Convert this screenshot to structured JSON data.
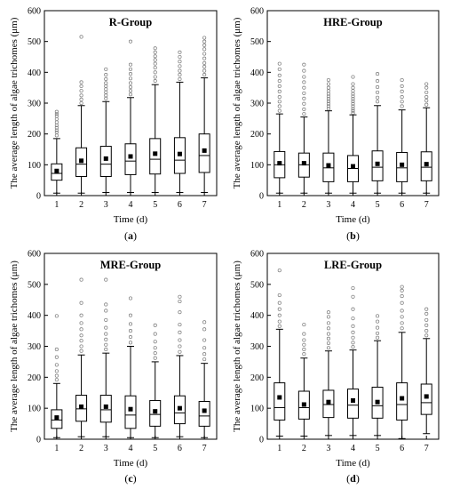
{
  "chart_data": [
    {
      "type": "box",
      "panel_label": "a",
      "title": "R-Group",
      "xlabel": "Time (d)",
      "ylabel": "The average length of algae trichomes (μm)",
      "ylim": [
        0,
        600
      ],
      "yticks": [
        0,
        100,
        200,
        300,
        400,
        500,
        600
      ],
      "categories": [
        "1",
        "2",
        "3",
        "4",
        "5",
        "6",
        "7"
      ],
      "boxes": [
        {
          "x": "1",
          "whisker_low": 8,
          "q1": 50,
          "median": 72,
          "q3": 103,
          "whisker_high": 185,
          "mean": 80,
          "outliers": [
            195,
            205,
            212,
            220,
            228,
            238,
            248,
            258,
            265,
            272
          ]
        },
        {
          "x": "2",
          "whisker_low": 8,
          "q1": 62,
          "median": 102,
          "q3": 155,
          "whisker_high": 292,
          "mean": 113,
          "outliers": [
            300,
            312,
            325,
            340,
            355,
            368,
            515
          ]
        },
        {
          "x": "3",
          "whisker_low": 10,
          "q1": 62,
          "median": 102,
          "q3": 160,
          "whisker_high": 305,
          "mean": 120,
          "outliers": [
            315,
            325,
            335,
            345,
            355,
            365,
            378,
            392,
            410
          ]
        },
        {
          "x": "4",
          "whisker_low": 10,
          "q1": 68,
          "median": 112,
          "q3": 168,
          "whisker_high": 318,
          "mean": 127,
          "outliers": [
            328,
            340,
            352,
            365,
            380,
            395,
            410,
            425,
            500
          ]
        },
        {
          "x": "5",
          "whisker_low": 10,
          "q1": 70,
          "median": 118,
          "q3": 185,
          "whisker_high": 360,
          "mean": 136,
          "outliers": [
            372,
            385,
            400,
            415,
            428,
            440,
            452,
            465,
            478
          ]
        },
        {
          "x": "6",
          "whisker_low": 10,
          "q1": 72,
          "median": 115,
          "q3": 188,
          "whisker_high": 368,
          "mean": 135,
          "outliers": [
            378,
            392,
            405,
            420,
            435,
            450,
            465
          ]
        },
        {
          "x": "7",
          "whisker_low": 10,
          "q1": 75,
          "median": 130,
          "q3": 200,
          "whisker_high": 382,
          "mean": 146,
          "outliers": [
            392,
            405,
            418,
            430,
            445,
            460,
            475,
            488,
            500,
            512
          ]
        }
      ]
    },
    {
      "type": "box",
      "panel_label": "b",
      "title": "HRE-Group",
      "xlabel": "Time (d)",
      "ylabel": "The average length of algae trichomes (μm)",
      "ylim": [
        0,
        600
      ],
      "yticks": [
        0,
        100,
        200,
        300,
        400,
        500,
        600
      ],
      "categories": [
        "1",
        "2",
        "3",
        "4",
        "5",
        "6",
        "7"
      ],
      "boxes": [
        {
          "x": "1",
          "whisker_low": 8,
          "q1": 58,
          "median": 100,
          "q3": 143,
          "whisker_high": 265,
          "mean": 105,
          "outliers": [
            275,
            290,
            305,
            320,
            338,
            355,
            372,
            390,
            410,
            428
          ]
        },
        {
          "x": "2",
          "whisker_low": 8,
          "q1": 60,
          "median": 100,
          "q3": 138,
          "whisker_high": 255,
          "mean": 105,
          "outliers": [
            265,
            280,
            298,
            315,
            332,
            350,
            368,
            385,
            405,
            425
          ]
        },
        {
          "x": "3",
          "whisker_low": 8,
          "q1": 45,
          "median": 90,
          "q3": 138,
          "whisker_high": 275,
          "mean": 98,
          "outliers": [
            282,
            290,
            298,
            306,
            314,
            322,
            330,
            340,
            350,
            362,
            375
          ]
        },
        {
          "x": "4",
          "whisker_low": 8,
          "q1": 45,
          "median": 88,
          "q3": 130,
          "whisker_high": 262,
          "mean": 95,
          "outliers": [
            268,
            275,
            282,
            290,
            298,
            306,
            314,
            322,
            330,
            340,
            350,
            362,
            385
          ]
        },
        {
          "x": "5",
          "whisker_low": 8,
          "q1": 48,
          "median": 92,
          "q3": 145,
          "whisker_high": 292,
          "mean": 103,
          "outliers": [
            305,
            318,
            335,
            352,
            372,
            395
          ]
        },
        {
          "x": "6",
          "whisker_low": 8,
          "q1": 45,
          "median": 90,
          "q3": 140,
          "whisker_high": 278,
          "mean": 100,
          "outliers": [
            290,
            305,
            320,
            338,
            355,
            375
          ]
        },
        {
          "x": "7",
          "whisker_low": 8,
          "q1": 48,
          "median": 92,
          "q3": 142,
          "whisker_high": 285,
          "mean": 102,
          "outliers": [
            295,
            308,
            320,
            335,
            350,
            362
          ]
        }
      ]
    },
    {
      "type": "box",
      "panel_label": "c",
      "title": "MRE-Group",
      "xlabel": "Time (d)",
      "ylabel": "The average length of algae trichomes (μm)",
      "ylim": [
        0,
        600
      ],
      "yticks": [
        0,
        100,
        200,
        300,
        400,
        500,
        600
      ],
      "categories": [
        "1",
        "2",
        "3",
        "4",
        "5",
        "6",
        "7"
      ],
      "boxes": [
        {
          "x": "1",
          "whisker_low": 5,
          "q1": 35,
          "median": 62,
          "q3": 95,
          "whisker_high": 180,
          "mean": 70,
          "outliers": [
            192,
            205,
            220,
            240,
            265,
            290,
            398
          ]
        },
        {
          "x": "2",
          "whisker_low": 8,
          "q1": 58,
          "median": 98,
          "q3": 142,
          "whisker_high": 272,
          "mean": 105,
          "outliers": [
            285,
            300,
            318,
            335,
            355,
            375,
            400,
            440,
            515
          ]
        },
        {
          "x": "3",
          "whisker_low": 8,
          "q1": 55,
          "median": 95,
          "q3": 142,
          "whisker_high": 278,
          "mean": 105,
          "outliers": [
            290,
            305,
            322,
            340,
            360,
            385,
            415,
            435,
            515
          ]
        },
        {
          "x": "4",
          "whisker_low": 5,
          "q1": 35,
          "median": 78,
          "q3": 140,
          "whisker_high": 300,
          "mean": 97,
          "outliers": [
            312,
            330,
            350,
            372,
            400,
            455
          ]
        },
        {
          "x": "5",
          "whisker_low": 5,
          "q1": 42,
          "median": 80,
          "q3": 125,
          "whisker_high": 250,
          "mean": 90,
          "outliers": [
            262,
            278,
            295,
            315,
            340,
            368
          ]
        },
        {
          "x": "6",
          "whisker_low": 8,
          "q1": 50,
          "median": 85,
          "q3": 140,
          "whisker_high": 270,
          "mean": 100,
          "outliers": [
            282,
            300,
            320,
            345,
            370,
            410,
            445,
            460
          ]
        },
        {
          "x": "7",
          "whisker_low": 5,
          "q1": 42,
          "median": 75,
          "q3": 122,
          "whisker_high": 245,
          "mean": 92,
          "outliers": [
            258,
            275,
            295,
            320,
            355,
            378
          ]
        }
      ]
    },
    {
      "type": "box",
      "panel_label": "d",
      "title": "LRE-Group",
      "xlabel": "Time (d)",
      "ylabel": "The average length of algae trichomes (μm)",
      "ylim": [
        0,
        600
      ],
      "yticks": [
        0,
        100,
        200,
        300,
        400,
        500,
        600
      ],
      "categories": [
        "1",
        "2",
        "3",
        "4",
        "5",
        "6",
        "7"
      ],
      "boxes": [
        {
          "x": "1",
          "whisker_low": 10,
          "q1": 62,
          "median": 102,
          "q3": 182,
          "whisker_high": 355,
          "mean": 135,
          "outliers": [
            365,
            380,
            400,
            420,
            440,
            465,
            545
          ]
        },
        {
          "x": "2",
          "whisker_low": 10,
          "q1": 65,
          "median": 102,
          "q3": 155,
          "whisker_high": 262,
          "mean": 112,
          "outliers": [
            275,
            290,
            305,
            320,
            340,
            370
          ]
        },
        {
          "x": "3",
          "whisker_low": 12,
          "q1": 70,
          "median": 112,
          "q3": 158,
          "whisker_high": 285,
          "mean": 120,
          "outliers": [
            295,
            310,
            325,
            340,
            358,
            375,
            395,
            410
          ]
        },
        {
          "x": "4",
          "whisker_low": 12,
          "q1": 68,
          "median": 110,
          "q3": 162,
          "whisker_high": 288,
          "mean": 125,
          "outliers": [
            298,
            312,
            328,
            345,
            365,
            390,
            420,
            460,
            488
          ]
        },
        {
          "x": "5",
          "whisker_low": 12,
          "q1": 68,
          "median": 108,
          "q3": 168,
          "whisker_high": 318,
          "mean": 120,
          "outliers": [
            328,
            342,
            360,
            380,
            398
          ]
        },
        {
          "x": "6",
          "whisker_low": 2,
          "q1": 62,
          "median": 112,
          "q3": 182,
          "whisker_high": 345,
          "mean": 132,
          "outliers": [
            358,
            375,
            395,
            415,
            440,
            462,
            480,
            492
          ]
        },
        {
          "x": "7",
          "whisker_low": 18,
          "q1": 80,
          "median": 118,
          "q3": 178,
          "whisker_high": 325,
          "mean": 138,
          "outliers": [
            335,
            350,
            368,
            385,
            405,
            420
          ]
        }
      ]
    }
  ]
}
